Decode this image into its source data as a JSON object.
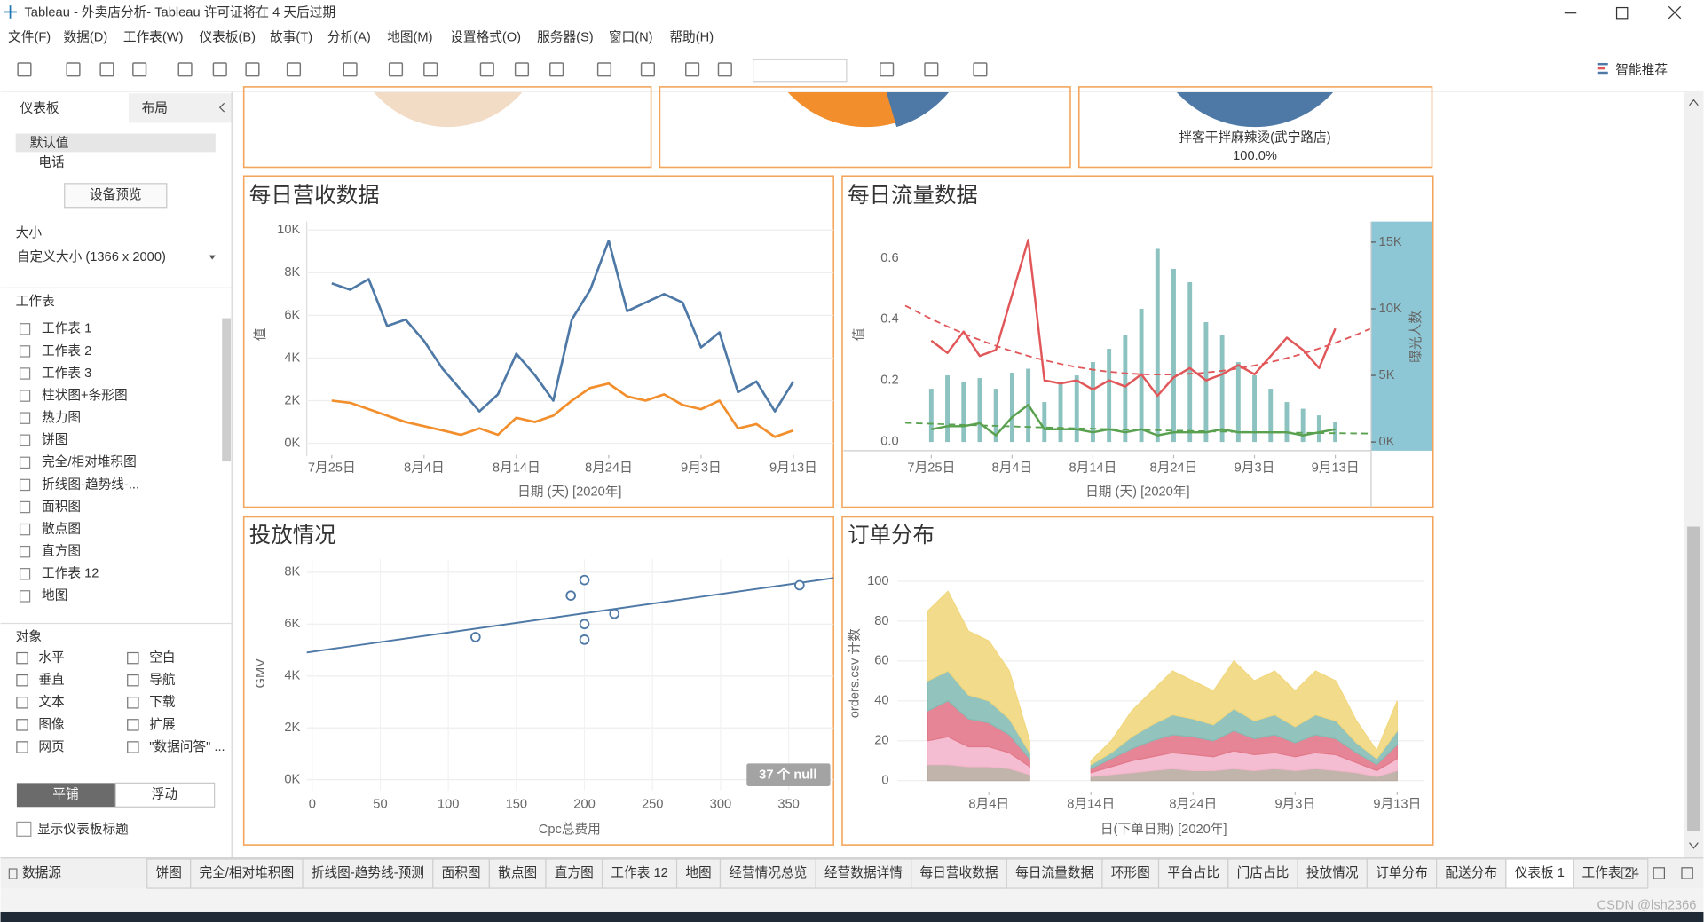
{
  "window": {
    "title": "Tableau - 外卖店分析- Tableau 许可证将在 4 天后过期"
  },
  "menu": [
    "文件(F)",
    "数据(D)",
    "工作表(W)",
    "仪表板(B)",
    "故事(T)",
    "分析(A)",
    "地图(M)",
    "设置格式(O)",
    "服务器(S)",
    "窗口(N)",
    "帮助(H)"
  ],
  "toolbar": {
    "recommend": "智能推荐"
  },
  "sidebar": {
    "tabs": [
      "仪表板",
      "布局"
    ],
    "devices": [
      "默认值",
      "电话"
    ],
    "preview_button": "设备预览",
    "size_title": "大小",
    "size_value": "自定义大小 (1366 x 2000)",
    "sheets_title": "工作表",
    "sheets": [
      "工作表 1",
      "工作表 2",
      "工作表 3",
      "柱状图+条形图",
      "热力图",
      "饼图",
      "完全/相对堆积图",
      "折线图-趋势线-...",
      "面积图",
      "散点图",
      "直方图",
      "工作表 12",
      "地图"
    ],
    "objects_title": "对象",
    "objects": [
      "水平",
      "垂直",
      "文本",
      "图像",
      "网页",
      "空白",
      "导航",
      "下载",
      "扩展",
      "\"数据问答\" ..."
    ],
    "layout_modes": [
      "平铺",
      "浮动"
    ],
    "show_title": "显示仪表板标题"
  },
  "dashboard": {
    "pie_label": "拌客干拌麻辣烫(武宁路店)",
    "pie_value": "100.0%",
    "revenue": {
      "type": "line",
      "title": "每日营收数据",
      "categories": [
        "7月25日",
        "7月27日",
        "7月29日",
        "7月31日",
        "8月2日",
        "8月4日",
        "8月6日",
        "8月8日",
        "8月10日",
        "8月12日",
        "8月14日",
        "8月16日",
        "8月18日",
        "8月20日",
        "8月22日",
        "8月24日",
        "8月26日",
        "8月28日",
        "8月30日",
        "9月1日",
        "9月3日",
        "9月5日",
        "9月7日",
        "9月9日",
        "9月11日",
        "9月13日"
      ],
      "series": [
        {
          "color": "#4e79a7",
          "values": [
            7500,
            7200,
            7700,
            5500,
            5800,
            4800,
            3500,
            2500,
            1500,
            2300,
            4200,
            3200,
            2000,
            5800,
            7200,
            9500,
            6200,
            6600,
            7000,
            6600,
            4500,
            5200,
            2400,
            2900,
            1500,
            2900
          ]
        },
        {
          "color": "#f28e2b",
          "values": [
            2000,
            1900,
            1600,
            1300,
            1000,
            800,
            600,
            400,
            700,
            400,
            1200,
            1000,
            1300,
            2000,
            2600,
            2800,
            2200,
            2000,
            2300,
            1800,
            1600,
            2000,
            700,
            900,
            300,
            600
          ]
        }
      ],
      "ylim": [
        -600,
        10400
      ],
      "yticks": [
        {
          "value": 0,
          "label": "0K"
        },
        {
          "value": 2000,
          "label": "2K"
        },
        {
          "value": 4000,
          "label": "4K"
        },
        {
          "value": 6000,
          "label": "6K"
        },
        {
          "value": 8000,
          "label": "8K"
        },
        {
          "value": 10000,
          "label": "10K"
        }
      ],
      "xticks": [
        "7月25日",
        "8月4日",
        "8月14日",
        "8月24日",
        "9月3日",
        "9月13日"
      ],
      "xlabel": "日期 (天) [2020年]",
      "ylabel": "值",
      "grid": true
    },
    "traffic": {
      "type": "combo",
      "title": "每日流量数据",
      "categories": [
        "7月25日",
        "7月27日",
        "7月29日",
        "7月31日",
        "8月2日",
        "8月4日",
        "8月6日",
        "8月8日",
        "8月10日",
        "8月12日",
        "8月14日",
        "8月16日",
        "8月18日",
        "8月20日",
        "8月22日",
        "8月24日",
        "8月26日",
        "8月28日",
        "8月30日",
        "9月1日",
        "9月3日",
        "9月5日",
        "9月7日",
        "9月9日",
        "9月11日",
        "9月13日"
      ],
      "series": [
        {
          "kind": "bar",
          "axis": "y2",
          "color": "#8cc2c0",
          "values": [
            4000,
            5000,
            4500,
            4800,
            4000,
            5200,
            5500,
            3000,
            4500,
            5000,
            6000,
            7000,
            8000,
            10000,
            14500,
            13000,
            12000,
            9000,
            8000,
            6000,
            5000,
            4000,
            3000,
            2500,
            2000,
            1500
          ]
        },
        {
          "kind": "line",
          "color": "#e15759",
          "values": [
            0.33,
            0.29,
            0.36,
            0.28,
            0.3,
            0.48,
            0.66,
            0.2,
            0.19,
            0.2,
            0.17,
            0.2,
            0.18,
            0.22,
            0.15,
            0.21,
            0.24,
            0.2,
            0.22,
            0.25,
            0.22,
            0.28,
            0.34,
            0.3,
            0.24,
            0.37
          ]
        },
        {
          "kind": "line",
          "color": "#59a14f",
          "values": [
            0.04,
            0.05,
            0.05,
            0.06,
            0.02,
            0.08,
            0.12,
            0.04,
            0.04,
            0.04,
            0.03,
            0.04,
            0.03,
            0.04,
            0.02,
            0.03,
            0.03,
            0.03,
            0.04,
            0.03,
            0.03,
            0.03,
            0.03,
            0.02,
            0.03,
            0.04
          ]
        }
      ],
      "ylim": [
        -0.03,
        0.72
      ],
      "yticks": [
        {
          "value": 0,
          "label": "0.0"
        },
        0.2,
        0.4,
        0.6
      ],
      "y2lim": [
        -650,
        16550
      ],
      "y2ticks": [
        {
          "value": 0,
          "label": "0K"
        },
        {
          "value": 5000,
          "label": "5K"
        },
        {
          "value": 10000,
          "label": "10K"
        },
        {
          "value": 15000,
          "label": "15K"
        }
      ],
      "xticks": [
        "7月25日",
        "8月4日",
        "8月14日",
        "8月24日",
        "9月3日",
        "9月13日"
      ],
      "xlabel": "日期 (天) [2020年]",
      "ylabel": "值",
      "y2label": "曝光人数",
      "trend": true
    },
    "placement": {
      "type": "scatter",
      "title": "投放情况",
      "x": [
        120,
        190,
        200,
        200,
        200,
        222,
        358
      ],
      "values": [
        5500,
        7100,
        7700,
        6000,
        5400,
        6400,
        7500
      ],
      "color": "#4e79a7",
      "xlim": [
        -4,
        383
      ],
      "ylim": [
        -420,
        8500
      ],
      "xticks": [
        0,
        50,
        100,
        150,
        200,
        250,
        300,
        350
      ],
      "yticks": [
        {
          "value": 0,
          "label": "0K"
        },
        {
          "value": 2000,
          "label": "2K"
        },
        {
          "value": 4000,
          "label": "4K"
        },
        {
          "value": 6000,
          "label": "6K"
        },
        {
          "value": 8000,
          "label": "8K"
        }
      ],
      "xlabel": "Cpc总费用",
      "ylabel": "GMV",
      "null_note": "37 个 null",
      "trend": true,
      "grid": true
    },
    "orders": {
      "type": "area",
      "title": "订单分布",
      "categories": [
        "7月29日",
        "7月31日",
        "8月2日",
        "8月4日",
        "8月6日",
        "8月8日",
        "8月10日",
        "8月12日",
        "8月14日",
        "8月16日",
        "8月18日",
        "8月20日",
        "8月22日",
        "8月24日",
        "8月26日",
        "8月28日",
        "8月30日",
        "9月1日",
        "9月3日",
        "9月5日",
        "9月7日",
        "9月9日",
        "9月11日",
        "9月13日"
      ],
      "series": [
        {
          "color": "#b9aca2",
          "values": [
            8,
            8,
            7,
            7,
            6,
            3,
            null,
            null,
            2,
            3,
            4,
            5,
            6,
            5,
            5,
            6,
            5,
            6,
            5,
            6,
            5,
            4,
            2,
            5
          ]
        },
        {
          "color": "#f4b6cc",
          "values": [
            12,
            14,
            10,
            10,
            8,
            4,
            null,
            null,
            2,
            4,
            6,
            7,
            8,
            8,
            7,
            9,
            8,
            8,
            7,
            8,
            8,
            5,
            3,
            6
          ]
        },
        {
          "color": "#e2788a",
          "values": [
            15,
            18,
            14,
            12,
            9,
            4,
            null,
            null,
            2,
            4,
            6,
            8,
            9,
            9,
            8,
            10,
            8,
            9,
            7,
            9,
            8,
            5,
            3,
            7
          ]
        },
        {
          "color": "#86bcb6",
          "values": [
            15,
            15,
            12,
            11,
            8,
            3,
            null,
            null,
            2,
            3,
            6,
            8,
            10,
            9,
            8,
            11,
            9,
            10,
            8,
            10,
            9,
            5,
            3,
            7
          ]
        },
        {
          "color": "#f1d77e",
          "values": [
            35,
            40,
            32,
            30,
            24,
            6,
            null,
            null,
            2,
            6,
            13,
            17,
            22,
            19,
            17,
            24,
            20,
            22,
            18,
            22,
            20,
            11,
            4,
            15
          ]
        }
      ],
      "stacked": true,
      "ylim": [
        -5,
        111
      ],
      "yticks": [
        0,
        20,
        40,
        60,
        80,
        100
      ],
      "xticks": [
        "8月4日",
        "8月14日",
        "8月24日",
        "9月3日",
        "9月13日"
      ],
      "xlabel": "日(下单日期) [2020年]",
      "ylabel": "orders.csv 计数",
      "grid": true
    }
  },
  "tabs": [
    "数据源",
    "饼图",
    "完全/相对堆积图",
    "折线图-趋势线-预测",
    "面积图",
    "散点图",
    "直方图",
    "工作表 12",
    "地图",
    "经营情况总览",
    "经营数据详情",
    "每日营收数据",
    "每日流量数据",
    "环形图",
    "平台占比",
    "门店占比",
    "投放情况",
    "订单分布",
    "配送分布",
    "仪表板 1",
    "工作表 24"
  ],
  "watermark": "CSDN @lsh2366"
}
